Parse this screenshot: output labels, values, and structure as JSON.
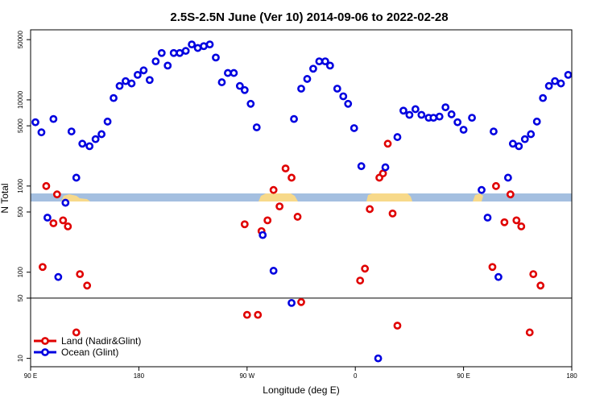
{
  "chart_data": {
    "type": "scatter",
    "title": "2.5S-2.5N June (Ver 10)   2014-09-06 to 2022-02-28",
    "xlabel": "Longitude (deg E)",
    "ylabel": "N Total",
    "xlim": [
      90,
      540
    ],
    "ylim": [
      8,
      65000
    ],
    "yscale": "log",
    "reference_line_y": 50,
    "x_ticks": [
      {
        "value": 90,
        "label": "90 E"
      },
      {
        "value": 180,
        "label": "180"
      },
      {
        "value": 270,
        "label": "90 W"
      },
      {
        "value": 360,
        "label": "0"
      },
      {
        "value": 450,
        "label": "90 E"
      },
      {
        "value": 540,
        "label": "180"
      }
    ],
    "y_ticks": [
      {
        "value": 10,
        "label": "10"
      },
      {
        "value": 50,
        "label": "50"
      },
      {
        "value": 100,
        "label": "100"
      },
      {
        "value": 500,
        "label": "500"
      },
      {
        "value": 1000,
        "label": "1000"
      },
      {
        "value": 5000,
        "label": "5000"
      },
      {
        "value": 10000,
        "label": "10000"
      },
      {
        "value": 50000,
        "label": "50000"
      }
    ],
    "legend_position": "bottom-left",
    "colors": {
      "land": "#e00000",
      "ocean": "#0000e0",
      "map_ocean": "#a4bfe0",
      "map_land": "#f7d98a"
    },
    "series": [
      {
        "name": "Land (Nadir&Glint)",
        "color": "#e00000",
        "points": [
          [
            100,
            115
          ],
          [
            103,
            1000
          ],
          [
            109,
            370
          ],
          [
            112,
            800
          ],
          [
            117,
            400
          ],
          [
            121,
            340
          ],
          [
            128,
            20
          ],
          [
            131,
            95
          ],
          [
            137,
            70
          ],
          [
            268,
            360
          ],
          [
            270,
            32
          ],
          [
            279,
            32
          ],
          [
            282,
            300
          ],
          [
            287,
            400
          ],
          [
            292,
            900
          ],
          [
            297,
            580
          ],
          [
            302,
            1600
          ],
          [
            307,
            1250
          ],
          [
            312,
            440
          ],
          [
            315,
            45
          ],
          [
            364,
            80
          ],
          [
            368,
            110
          ],
          [
            372,
            540
          ],
          [
            380,
            1250
          ],
          [
            383,
            1400
          ],
          [
            387,
            3100
          ],
          [
            391,
            480
          ],
          [
            395,
            24
          ],
          [
            474,
            115
          ],
          [
            477,
            1000
          ],
          [
            484,
            380
          ],
          [
            489,
            800
          ],
          [
            494,
            400
          ],
          [
            498,
            340
          ],
          [
            505,
            20
          ],
          [
            508,
            95
          ],
          [
            514,
            70
          ]
        ]
      },
      {
        "name": "Ocean (Glint)",
        "color": "#0000e0",
        "points": [
          [
            94,
            5500
          ],
          [
            99,
            4200
          ],
          [
            104,
            430
          ],
          [
            109,
            6000
          ],
          [
            113,
            88
          ],
          [
            119,
            640
          ],
          [
            124,
            4300
          ],
          [
            128,
            1250
          ],
          [
            133,
            3100
          ],
          [
            139,
            2900
          ],
          [
            144,
            3500
          ],
          [
            149,
            4000
          ],
          [
            154,
            5600
          ],
          [
            159,
            10500
          ],
          [
            164,
            14500
          ],
          [
            169,
            16500
          ],
          [
            174,
            15500
          ],
          [
            179,
            19500
          ],
          [
            184,
            22000
          ],
          [
            189,
            17000
          ],
          [
            194,
            28000
          ],
          [
            199,
            35000
          ],
          [
            204,
            25000
          ],
          [
            209,
            35000
          ],
          [
            214,
            35000
          ],
          [
            219,
            37000
          ],
          [
            224,
            44000
          ],
          [
            229,
            40000
          ],
          [
            234,
            42000
          ],
          [
            239,
            44000
          ],
          [
            244,
            31000
          ],
          [
            249,
            16000
          ],
          [
            254,
            20500
          ],
          [
            259,
            20500
          ],
          [
            264,
            14500
          ],
          [
            268,
            13000
          ],
          [
            273,
            9000
          ],
          [
            278,
            4800
          ],
          [
            283,
            270
          ],
          [
            292,
            104
          ],
          [
            307,
            44
          ],
          [
            309,
            6000
          ],
          [
            315,
            13500
          ],
          [
            320,
            17500
          ],
          [
            325,
            23000
          ],
          [
            330,
            28000
          ],
          [
            335,
            28000
          ],
          [
            339,
            25000
          ],
          [
            345,
            13500
          ],
          [
            350,
            11000
          ],
          [
            354,
            9000
          ],
          [
            359,
            4700
          ],
          [
            365,
            1700
          ],
          [
            379,
            10
          ],
          [
            385,
            1650
          ],
          [
            395,
            3700
          ],
          [
            400,
            7500
          ],
          [
            405,
            6700
          ],
          [
            410,
            7800
          ],
          [
            415,
            6700
          ],
          [
            421,
            6200
          ],
          [
            425,
            6200
          ],
          [
            430,
            6400
          ],
          [
            435,
            8200
          ],
          [
            440,
            6800
          ],
          [
            445,
            5500
          ],
          [
            450,
            4500
          ],
          [
            457,
            6200
          ],
          [
            465,
            900
          ],
          [
            470,
            430
          ],
          [
            475,
            4300
          ],
          [
            479,
            88
          ],
          [
            487,
            1250
          ],
          [
            491,
            3100
          ],
          [
            496,
            2900
          ],
          [
            501,
            3500
          ],
          [
            506,
            4000
          ],
          [
            511,
            5600
          ],
          [
            516,
            10500
          ],
          [
            521,
            14500
          ],
          [
            526,
            16500
          ],
          [
            531,
            15500
          ],
          [
            537,
            19500
          ]
        ]
      }
    ]
  },
  "legend": {
    "land_label": "Land (Nadir&Glint)",
    "ocean_label": "Ocean (Glint)"
  }
}
